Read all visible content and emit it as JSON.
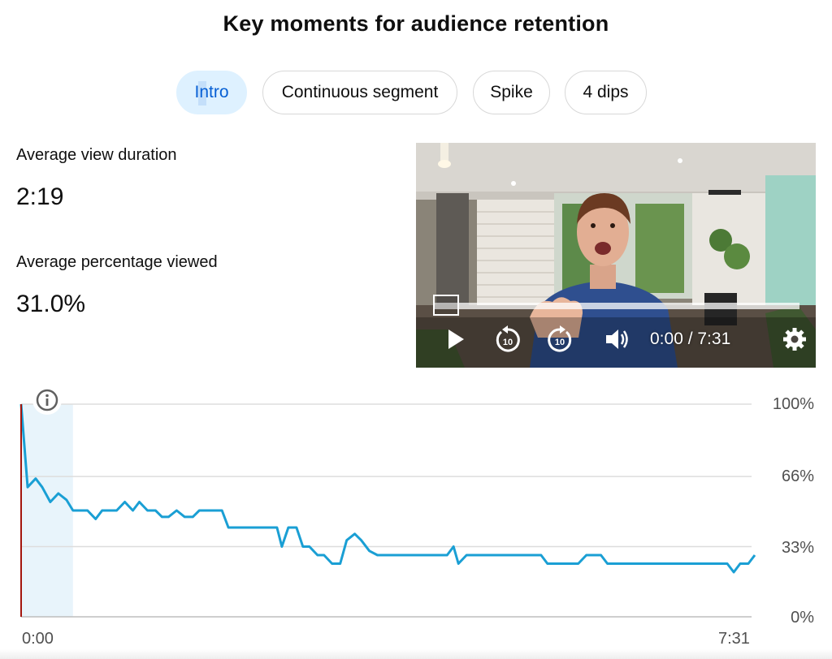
{
  "page": {
    "title": "Key moments for audience retention"
  },
  "chips": [
    {
      "label": "Intro",
      "active": true
    },
    {
      "label": "Continuous segment",
      "active": false
    },
    {
      "label": "Spike",
      "active": false
    },
    {
      "label": "4 dips",
      "active": false
    }
  ],
  "stats": {
    "avg_view_duration_label": "Average view duration",
    "avg_view_duration_value": "2:19",
    "avg_pct_viewed_label": "Average percentage viewed",
    "avg_pct_viewed_value": "31.0%"
  },
  "player": {
    "time_display": "0:00 / 7:31",
    "progress": 0.0,
    "controls": [
      "play-icon",
      "rewind-10-icon",
      "forward-10-icon",
      "volume-icon",
      "settings-gear-icon"
    ],
    "rewind_label": "10",
    "forward_label": "10"
  },
  "chart_data": {
    "type": "line",
    "title": "",
    "xlabel": "",
    "ylabel": "",
    "x_tick_labels": [
      "0:00",
      "7:31"
    ],
    "y_tick_labels": [
      "100%",
      "66%",
      "33%",
      "0%"
    ],
    "y_tick_values": [
      100,
      66,
      33,
      0
    ],
    "xlim": [
      0,
      451
    ],
    "ylim": [
      0,
      100
    ],
    "grid": true,
    "highlight": {
      "label": "Intro",
      "x_start": 0,
      "x_end": 32
    },
    "series": [
      {
        "color": "#1a9fd4",
        "points": [
          [
            0,
            100
          ],
          [
            4,
            61
          ],
          [
            9,
            65
          ],
          [
            13,
            61
          ],
          [
            18,
            54
          ],
          [
            23,
            58
          ],
          [
            28,
            55
          ],
          [
            32,
            50
          ],
          [
            41,
            50
          ],
          [
            46,
            46
          ],
          [
            50,
            50
          ],
          [
            59,
            50
          ],
          [
            64,
            54
          ],
          [
            69,
            50
          ],
          [
            73,
            54
          ],
          [
            78,
            50
          ],
          [
            83,
            50
          ],
          [
            87,
            47
          ],
          [
            91,
            47
          ],
          [
            96,
            50
          ],
          [
            101,
            47
          ],
          [
            106,
            47
          ],
          [
            110,
            50
          ],
          [
            124,
            50
          ],
          [
            128,
            42
          ],
          [
            147,
            42
          ],
          [
            152,
            42
          ],
          [
            158,
            42
          ],
          [
            161,
            33
          ],
          [
            165,
            42
          ],
          [
            170,
            42
          ],
          [
            174,
            33
          ],
          [
            178,
            33
          ],
          [
            183,
            29
          ],
          [
            187,
            29
          ],
          [
            192,
            25
          ],
          [
            197,
            25
          ],
          [
            201,
            36
          ],
          [
            206,
            39
          ],
          [
            210,
            36
          ],
          [
            215,
            31
          ],
          [
            220,
            29
          ],
          [
            263,
            29
          ],
          [
            267,
            33
          ],
          [
            270,
            25
          ],
          [
            275,
            29
          ],
          [
            321,
            29
          ],
          [
            325,
            25
          ],
          [
            344,
            25
          ],
          [
            349,
            29
          ],
          [
            358,
            29
          ],
          [
            362,
            25
          ],
          [
            436,
            25
          ],
          [
            440,
            21
          ],
          [
            444,
            25
          ],
          [
            449,
            25
          ],
          [
            453,
            29
          ]
        ]
      }
    ],
    "baseline_marker_color": "#a3160e"
  }
}
